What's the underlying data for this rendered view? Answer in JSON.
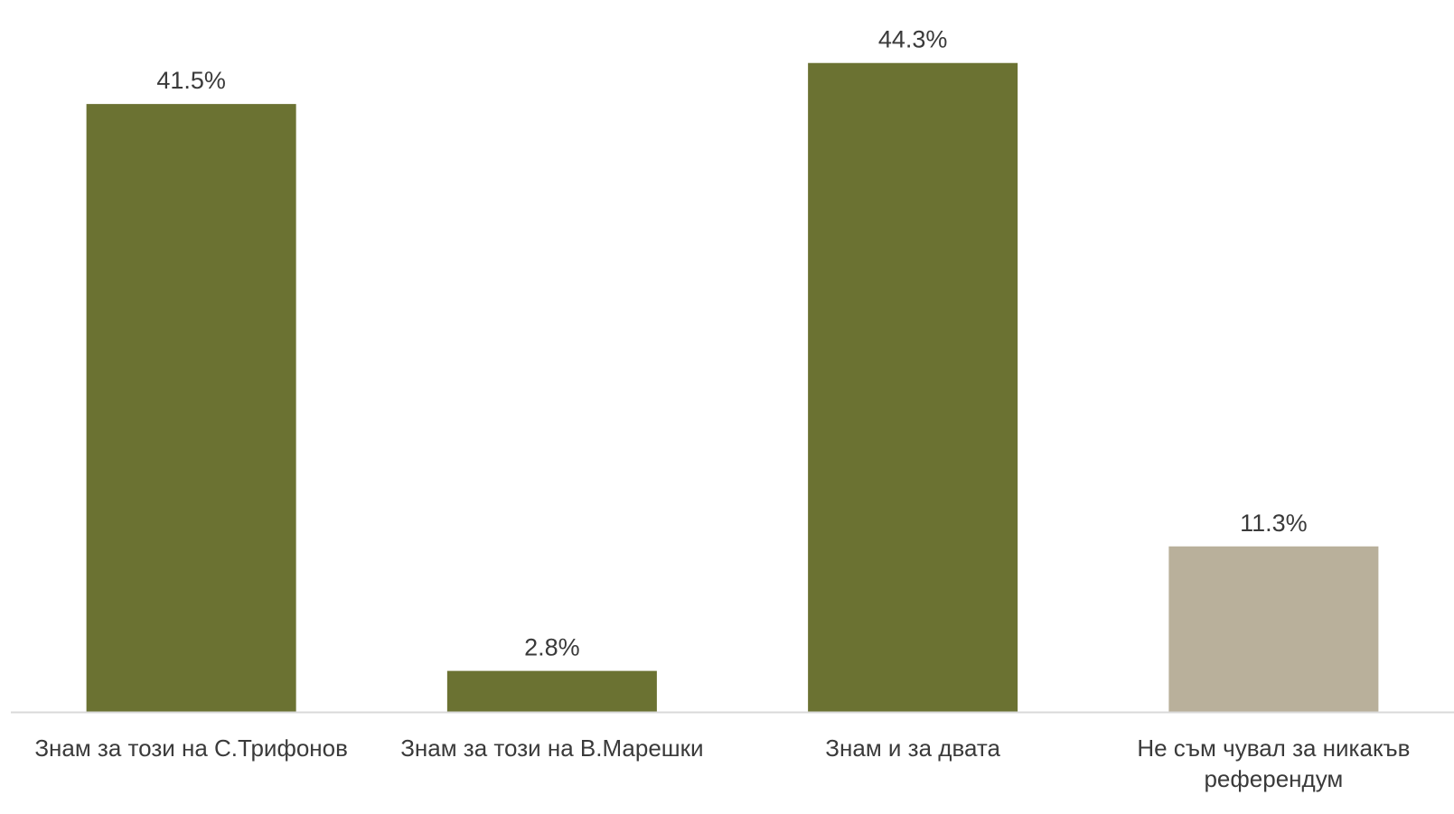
{
  "chart_data": {
    "type": "bar",
    "title": "",
    "xlabel": "",
    "ylabel": "",
    "ylim": [
      0,
      48.6
    ],
    "grid": false,
    "categories": [
      "Знам за този на С.Трифонов",
      "Знам за този на В.Марешки",
      "Знам и за двата",
      "Не съм чувал за никакъв референдум"
    ],
    "category_lines": [
      [
        "Знам за този на С.Трифонов"
      ],
      [
        "Знам за този на В.Марешки"
      ],
      [
        "Знам и за двата"
      ],
      [
        "Не съм чувал за никакъв",
        "референдум"
      ]
    ],
    "values": [
      41.5,
      2.8,
      44.3,
      11.3
    ],
    "value_labels": [
      "41.5%",
      "2.8%",
      "44.3%",
      "11.3%"
    ],
    "colors": [
      "#6b7232",
      "#6b7232",
      "#6b7232",
      "#b9b09b"
    ],
    "axis_color": "#d9d9d9"
  }
}
